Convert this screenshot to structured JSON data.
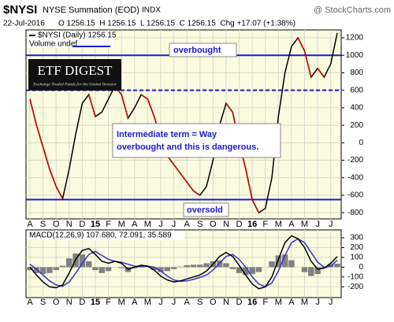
{
  "chart_data": [
    {
      "type": "line",
      "title": "$NYSI",
      "subtitle": "NYSE Summation (EOD)",
      "exchange": "INDX",
      "source": "@ StockCharts.com",
      "date": "22-Jul-2016",
      "quote": "O 1256.15  H 1256.15  L 1256.15  C 1256.15  Chg +17.07 (+1.38%)",
      "logo_title": "ETF DIGEST",
      "logo_subtitle": "Exchange Traded Funds for the Global Investor",
      "categories": [
        "A",
        null,
        "S",
        null,
        "O",
        null,
        "N",
        null,
        "D",
        null,
        "15",
        null,
        "F",
        null,
        "M",
        null,
        "A",
        null,
        "M",
        null,
        "J",
        null,
        "J",
        null,
        "A",
        null,
        "S",
        null,
        "O",
        null,
        "N",
        null,
        "D",
        null,
        "16",
        null,
        "F",
        null,
        "M",
        null,
        "A",
        null,
        "M",
        null,
        "J",
        null,
        "J",
        null
      ],
      "series": [
        {
          "name": "$NYSI (Daily) 1256.15",
          "color": "#000000",
          "down_color": "#cc0000",
          "values": [
            500,
            200,
            -50,
            -300,
            -500,
            -640,
            -300,
            100,
            450,
            550,
            300,
            350,
            500,
            650,
            550,
            280,
            400,
            550,
            500,
            300,
            50,
            -150,
            -250,
            -350,
            -450,
            -550,
            -600,
            -500,
            -200,
            200,
            450,
            350,
            0,
            -300,
            -650,
            -800,
            -750,
            -400,
            300,
            800,
            1100,
            1200,
            1050,
            750,
            850,
            750,
            900,
            1256.15
          ]
        }
      ],
      "volume_label": "Volume undef",
      "ylim": [
        -870,
        1290
      ],
      "yticks": [
        -800,
        -600,
        -400,
        -200,
        0,
        200,
        400,
        600,
        800,
        1000,
        1200
      ],
      "grid": true,
      "reference_lines": [
        {
          "value": 1000,
          "style": "solid",
          "color": "#1a1acc"
        },
        {
          "value": 600,
          "style": "dashed",
          "color": "#1a1acc"
        },
        {
          "value": -650,
          "style": "solid",
          "color": "#1a1acc"
        }
      ],
      "annotations": [
        "overbought",
        "oversold",
        "Intermediate term = Way overbought and this is dangerous."
      ]
    },
    {
      "type": "macd",
      "legend": "MACD(12,26,9) 107.680, 72.091, 35.589",
      "series": [
        {
          "name": "MACD",
          "color": "#000000",
          "values": [
            0,
            -80,
            -150,
            -200,
            -210,
            -180,
            -60,
            80,
            170,
            190,
            130,
            60,
            40,
            60,
            40,
            -20,
            0,
            20,
            10,
            -30,
            -90,
            -130,
            -150,
            -140,
            -120,
            -100,
            -80,
            -40,
            30,
            110,
            150,
            110,
            20,
            -80,
            -170,
            -220,
            -200,
            -100,
            80,
            250,
            320,
            290,
            200,
            60,
            -20,
            -10,
            40,
            107.68
          ]
        },
        {
          "name": "Signal",
          "color": "#3333cc",
          "values": [
            30,
            -20,
            -80,
            -140,
            -180,
            -195,
            -150,
            -60,
            40,
            130,
            160,
            120,
            80,
            60,
            50,
            30,
            10,
            5,
            10,
            0,
            -40,
            -90,
            -130,
            -145,
            -140,
            -125,
            -105,
            -80,
            -30,
            40,
            110,
            130,
            80,
            0,
            -100,
            -170,
            -200,
            -160,
            -40,
            120,
            250,
            290,
            250,
            150,
            50,
            0,
            10,
            72.091
          ]
        },
        {
          "name": "Histogram",
          "color": "#808080",
          "values": [
            -30,
            -60,
            -70,
            -60,
            -30,
            15,
            90,
            140,
            130,
            60,
            -30,
            -60,
            -40,
            0,
            -10,
            -50,
            -10,
            15,
            0,
            -30,
            -50,
            -40,
            -20,
            5,
            20,
            25,
            25,
            40,
            60,
            70,
            40,
            -20,
            -60,
            -80,
            -70,
            -50,
            0,
            60,
            120,
            130,
            70,
            0,
            -50,
            -90,
            -70,
            -10,
            30,
            35.589
          ]
        }
      ],
      "ylim": [
        -310,
        380
      ],
      "yticks": [
        -200,
        -100,
        0,
        100,
        200,
        300
      ],
      "grid": true
    }
  ]
}
